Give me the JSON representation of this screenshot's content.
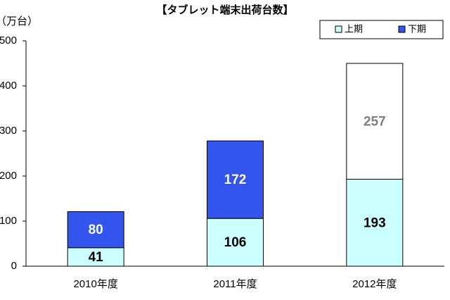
{
  "chart_data": {
    "type": "stacked_bar",
    "title": "【タブレット端末出荷台数】",
    "y_label": "（万台）",
    "categories": [
      "2010年度",
      "2011年度",
      "2012年度"
    ],
    "series": [
      {
        "name": "上期",
        "color": "#ccffff",
        "label_color": "#000000",
        "values": [
          41,
          106,
          193
        ]
      },
      {
        "name": "下期",
        "color": "#3355ee",
        "label_color": "#ffffff",
        "point_colors": [
          "#3355ee",
          "#3355ee",
          "#ffffff"
        ],
        "point_label_colors": [
          "#ffffff",
          "#ffffff",
          "#808080"
        ],
        "values": [
          80,
          172,
          257
        ]
      }
    ],
    "ylim": [
      0,
      500
    ],
    "yticks": [
      0,
      100,
      200,
      300,
      400,
      500
    ],
    "legend": "top-right"
  }
}
